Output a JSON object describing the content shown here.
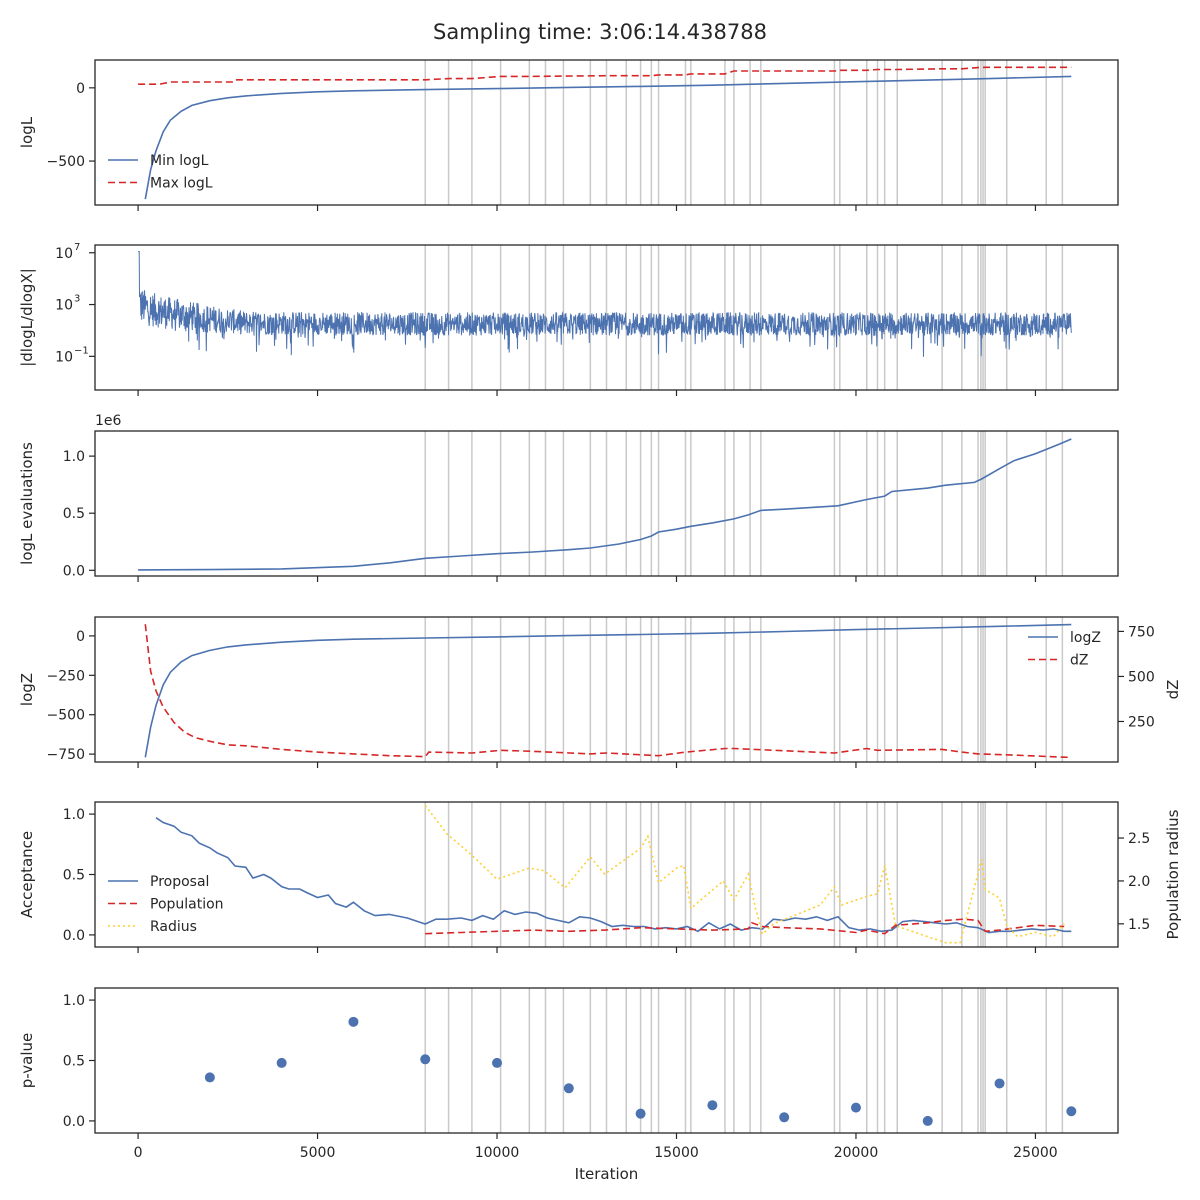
{
  "figure": {
    "title": "Sampling time: 3:06:14.438788"
  },
  "colors": {
    "blue": "#4c72b0",
    "red": "#d62728",
    "yellow": "#ffcf30",
    "vline": "#c9c9c9"
  },
  "x_axis": {
    "label": "Iteration",
    "ticks": [
      0,
      5000,
      10000,
      15000,
      20000,
      25000
    ],
    "range": [
      -1200,
      27300
    ]
  },
  "insertion_iterations": [
    8000,
    8650,
    9300,
    10100,
    10900,
    11350,
    11850,
    12600,
    13050,
    13600,
    14000,
    14300,
    14500,
    15250,
    15400,
    16350,
    16600,
    17050,
    17350,
    19400,
    19550,
    20300,
    20600,
    20800,
    21150,
    22400,
    22950,
    23400,
    23480,
    23540,
    23600,
    24200,
    25300,
    25750
  ],
  "chart_data": [
    {
      "type": "line",
      "ylabel": "logL",
      "ylim": [
        -800,
        190
      ],
      "yticks": [
        {
          "value": 0,
          "label": "0"
        },
        {
          "value": -500,
          "label": "−500"
        }
      ],
      "legend": "center-left",
      "series": [
        {
          "name": "Min logL",
          "color": "blue",
          "dash": "",
          "x": [
            200,
            350,
            500,
            700,
            900,
            1200,
            1500,
            2000,
            2500,
            3000,
            4000,
            5000,
            6000,
            8000,
            10000,
            12000,
            14000,
            16000,
            18000,
            20000,
            22000,
            24000,
            26000
          ],
          "y": [
            -760,
            -560,
            -430,
            -300,
            -220,
            -160,
            -120,
            -88,
            -68,
            -55,
            -38,
            -27,
            -20,
            -12,
            -5,
            3,
            10,
            18,
            30,
            42,
            53,
            65,
            78
          ]
        },
        {
          "name": "Max logL",
          "color": "red",
          "dash": "7,4",
          "x": [
            0,
            600,
            900,
            2700,
            2750,
            8000,
            8650,
            9300,
            10100,
            10900,
            13050,
            14300,
            14500,
            15250,
            15400,
            16350,
            16600,
            19400,
            19550,
            20300,
            20600,
            21150,
            22400,
            22950,
            23400,
            23600,
            26000
          ],
          "y": [
            25,
            25,
            40,
            40,
            55,
            55,
            63,
            63,
            78,
            78,
            83,
            83,
            88,
            88,
            95,
            95,
            115,
            115,
            120,
            120,
            125,
            125,
            130,
            130,
            138,
            140,
            140
          ]
        }
      ]
    },
    {
      "type": "line",
      "scale": "log",
      "ylabel": "|dlogL/dlogX|",
      "ylim": [
        -3.6,
        7.6
      ],
      "yticks": [
        {
          "value": 7,
          "base": "10",
          "exp": "7"
        },
        {
          "value": 3,
          "base": "10",
          "exp": "3"
        },
        {
          "value": -1,
          "base": "10",
          "exp": "−1"
        }
      ],
      "series": [
        {
          "name": "",
          "color": "blue",
          "noisy_from": 0,
          "noisy_to": 26000
        }
      ]
    },
    {
      "type": "line",
      "ylabel": "logL evaluations",
      "offset_text": "1e6",
      "ylim": [
        -0.05,
        1.22
      ],
      "yticks": [
        {
          "value": 1.0,
          "label": "1.0"
        },
        {
          "value": 0.5,
          "label": "0.5"
        },
        {
          "value": 0.0,
          "label": "0.0"
        }
      ],
      "series": [
        {
          "name": "",
          "color": "blue",
          "dash": "",
          "x": [
            0,
            2000,
            4000,
            6000,
            7000,
            8000,
            9000,
            10000,
            11000,
            12000,
            12600,
            13400,
            14000,
            14300,
            14500,
            15000,
            15400,
            16000,
            16600,
            17000,
            17350,
            18000,
            19500,
            20300,
            20800,
            21000,
            22000,
            22500,
            23300,
            23500,
            24000,
            24400,
            25000,
            25700,
            26000
          ],
          "y": [
            0.003,
            0.006,
            0.012,
            0.035,
            0.065,
            0.105,
            0.125,
            0.145,
            0.16,
            0.18,
            0.195,
            0.23,
            0.27,
            0.3,
            0.335,
            0.36,
            0.385,
            0.415,
            0.45,
            0.485,
            0.525,
            0.535,
            0.565,
            0.62,
            0.65,
            0.69,
            0.72,
            0.745,
            0.77,
            0.8,
            0.89,
            0.96,
            1.02,
            1.11,
            1.15
          ]
        }
      ]
    },
    {
      "type": "line",
      "ylabel": "logZ",
      "y2label": "dZ",
      "ylim": [
        -800,
        120
      ],
      "y2lim": [
        25,
        830
      ],
      "yticks": [
        {
          "value": 0,
          "label": "0"
        },
        {
          "value": -250,
          "label": "−250"
        },
        {
          "value": -500,
          "label": "−500"
        },
        {
          "value": -750,
          "label": "−750"
        }
      ],
      "y2ticks": [
        {
          "value": 750,
          "label": "750"
        },
        {
          "value": 500,
          "label": "500"
        },
        {
          "value": 250,
          "label": "250"
        }
      ],
      "legend": "top-right",
      "series": [
        {
          "name": "logZ",
          "color": "blue",
          "dash": "",
          "axis": "left",
          "x": [
            200,
            350,
            500,
            700,
            900,
            1200,
            1500,
            2000,
            2500,
            3000,
            4000,
            5000,
            6000,
            8000,
            10000,
            12000,
            14000,
            16000,
            18000,
            20000,
            22000,
            24000,
            26000
          ],
          "y": [
            -770,
            -580,
            -440,
            -310,
            -230,
            -165,
            -125,
            -92,
            -70,
            -57,
            -40,
            -28,
            -21,
            -13,
            -6,
            2,
            9,
            17,
            28,
            40,
            50,
            61,
            72
          ]
        },
        {
          "name": "dZ",
          "color": "red",
          "dash": "7,4",
          "axis": "right",
          "x": [
            200,
            350,
            500,
            700,
            1000,
            1300,
            1600,
            2000,
            2500,
            3000,
            4000,
            5000,
            6000,
            7000,
            8000,
            8100,
            9300,
            10100,
            10900,
            12600,
            13050,
            14500,
            15250,
            16350,
            16600,
            19400,
            20300,
            20600,
            22400,
            22950,
            23400,
            24200,
            26000
          ],
          "y": [
            790,
            530,
            420,
            330,
            245,
            190,
            160,
            140,
            120,
            115,
            95,
            80,
            70,
            60,
            55,
            80,
            75,
            90,
            85,
            70,
            75,
            60,
            80,
            100,
            100,
            75,
            100,
            90,
            95,
            80,
            70,
            65,
            50
          ]
        }
      ]
    },
    {
      "type": "line",
      "ylabel": "Acceptance",
      "y2label": "Population radius",
      "ylim": [
        -0.1,
        1.1
      ],
      "y2lim": [
        1.23,
        2.92
      ],
      "yticks": [
        {
          "value": 1.0,
          "label": "1.0"
        },
        {
          "value": 0.5,
          "label": "0.5"
        },
        {
          "value": 0.0,
          "label": "0.0"
        }
      ],
      "y2ticks": [
        {
          "value": 2.5,
          "label": "2.5"
        },
        {
          "value": 2.0,
          "label": "2.0"
        },
        {
          "value": 1.5,
          "label": "1.5"
        }
      ],
      "legend": "center-left",
      "series": [
        {
          "name": "Proposal",
          "color": "blue",
          "dash": "",
          "axis": "left",
          "x": [
            500,
            700,
            1000,
            1200,
            1500,
            1700,
            2000,
            2200,
            2500,
            2700,
            3000,
            3200,
            3500,
            3700,
            4000,
            4200,
            4500,
            4700,
            5000,
            5300,
            5500,
            5800,
            6000,
            6300,
            6600,
            7000,
            7500,
            8000,
            8300,
            8600,
            9000,
            9300,
            9600,
            9900,
            10200,
            10500,
            10800,
            11100,
            11400,
            11700,
            12000,
            12300,
            12600,
            12900,
            13200,
            13500,
            13800,
            14100,
            14400,
            14700,
            15000,
            15300,
            15600,
            15900,
            16200,
            16500,
            16800,
            17100,
            17400,
            17700,
            18000,
            18300,
            18600,
            18900,
            19200,
            19500,
            19800,
            20100,
            20400,
            20700,
            21000,
            21300,
            21600,
            21900,
            22200,
            22500,
            22800,
            23100,
            23400,
            23700,
            24000,
            24300,
            24600,
            24900,
            25200,
            25500,
            25800,
            26000
          ],
          "y": [
            0.97,
            0.93,
            0.9,
            0.85,
            0.82,
            0.76,
            0.72,
            0.68,
            0.64,
            0.57,
            0.56,
            0.47,
            0.5,
            0.47,
            0.4,
            0.38,
            0.38,
            0.35,
            0.31,
            0.33,
            0.26,
            0.23,
            0.27,
            0.2,
            0.16,
            0.17,
            0.14,
            0.09,
            0.13,
            0.13,
            0.14,
            0.12,
            0.16,
            0.13,
            0.2,
            0.17,
            0.19,
            0.18,
            0.14,
            0.12,
            0.1,
            0.15,
            0.14,
            0.11,
            0.07,
            0.08,
            0.07,
            0.07,
            0.05,
            0.06,
            0.05,
            0.07,
            0.03,
            0.1,
            0.05,
            0.09,
            0.04,
            0.06,
            0.05,
            0.13,
            0.12,
            0.14,
            0.13,
            0.15,
            0.12,
            0.15,
            0.06,
            0.04,
            0.05,
            0.03,
            0.04,
            0.11,
            0.12,
            0.11,
            0.1,
            0.09,
            0.1,
            0.07,
            0.06,
            0.02,
            0.03,
            0.03,
            0.04,
            0.05,
            0.04,
            0.05,
            0.03,
            0.03
          ]
        },
        {
          "name": "Population",
          "color": "red",
          "dash": "7,4",
          "axis": "left",
          "x": [
            8000,
            9000,
            10000,
            11000,
            12000,
            13000,
            14000,
            15000,
            16000,
            17000,
            17100,
            17400,
            18000,
            19000,
            20000,
            20300,
            20800,
            21100,
            22000,
            22500,
            23000,
            23400,
            23600,
            24000,
            25000,
            25800
          ],
          "y": [
            0.01,
            0.02,
            0.03,
            0.04,
            0.03,
            0.04,
            0.06,
            0.05,
            0.04,
            0.05,
            0.1,
            0.07,
            0.06,
            0.05,
            0.02,
            0.04,
            0.01,
            0.08,
            0.1,
            0.12,
            0.13,
            0.12,
            0.03,
            0.04,
            0.08,
            0.07
          ]
        },
        {
          "name": "Radius",
          "color": "yellow",
          "dash": "2,3",
          "axis": "right",
          "x": [
            8000,
            8600,
            9300,
            10000,
            10900,
            11300,
            11900,
            12600,
            13000,
            14000,
            14200,
            14500,
            15000,
            15200,
            15400,
            16300,
            16600,
            17000,
            17200,
            17400,
            17700,
            18300,
            19000,
            19400,
            19600,
            20300,
            20600,
            20800,
            21100,
            22000,
            22500,
            22900,
            23500,
            23600,
            24000,
            24200,
            24500,
            25000,
            25500,
            25800
          ],
          "y": [
            2.88,
            2.55,
            2.3,
            2.02,
            2.15,
            2.12,
            1.92,
            2.28,
            2.08,
            2.38,
            2.52,
            1.98,
            2.15,
            2.18,
            1.68,
            2.0,
            1.78,
            2.08,
            1.68,
            1.38,
            1.5,
            1.6,
            1.72,
            1.93,
            1.72,
            1.82,
            1.85,
            2.18,
            1.48,
            1.35,
            1.28,
            1.28,
            2.25,
            1.9,
            1.8,
            1.48,
            1.35,
            1.4,
            1.35,
            1.5
          ]
        }
      ]
    },
    {
      "type": "scatter",
      "ylabel": "p-value",
      "xlabel": "Iteration",
      "ylim": [
        -0.1,
        1.1
      ],
      "yticks": [
        {
          "value": 1.0,
          "label": "1.0"
        },
        {
          "value": 0.5,
          "label": "0.5"
        },
        {
          "value": 0.0,
          "label": "0.0"
        }
      ],
      "series": [
        {
          "name": "",
          "color": "blue",
          "x": [
            2000,
            4000,
            6000,
            8000,
            10000,
            12000,
            14000,
            16000,
            18000,
            20000,
            22000,
            24000,
            26000
          ],
          "y": [
            0.36,
            0.48,
            0.82,
            0.51,
            0.48,
            0.27,
            0.06,
            0.13,
            0.03,
            0.11,
            0.0,
            0.31,
            0.08
          ]
        }
      ]
    }
  ]
}
